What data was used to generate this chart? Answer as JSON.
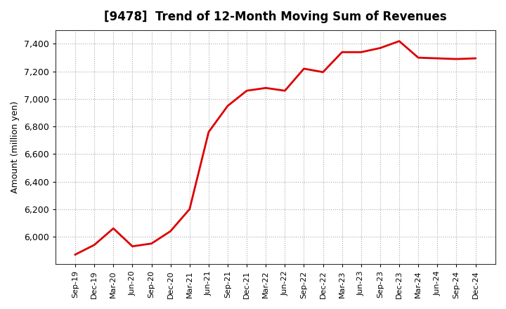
{
  "title": "[9478]  Trend of 12-Month Moving Sum of Revenues",
  "ylabel": "Amount (million yen)",
  "background_color": "#ffffff",
  "plot_background_color": "#ffffff",
  "line_color": "#dd0000",
  "line_width": 2.0,
  "grid_color": "#aaaaaa",
  "ylim": [
    5800,
    7500
  ],
  "yticks": [
    6000,
    6200,
    6400,
    6600,
    6800,
    7000,
    7200,
    7400
  ],
  "x_labels": [
    "Sep-19",
    "Dec-19",
    "Mar-20",
    "Jun-20",
    "Sep-20",
    "Dec-20",
    "Mar-21",
    "Jun-21",
    "Sep-21",
    "Dec-21",
    "Mar-22",
    "Jun-22",
    "Sep-22",
    "Dec-22",
    "Mar-23",
    "Jun-23",
    "Sep-23",
    "Dec-23",
    "Mar-24",
    "Jun-24",
    "Sep-24",
    "Dec-24"
  ],
  "values": [
    5870,
    5940,
    6060,
    5930,
    5950,
    6040,
    6200,
    6760,
    6950,
    7060,
    7080,
    7060,
    7220,
    7195,
    7340,
    7340,
    7370,
    7420,
    7300,
    7295,
    7290,
    7295
  ]
}
